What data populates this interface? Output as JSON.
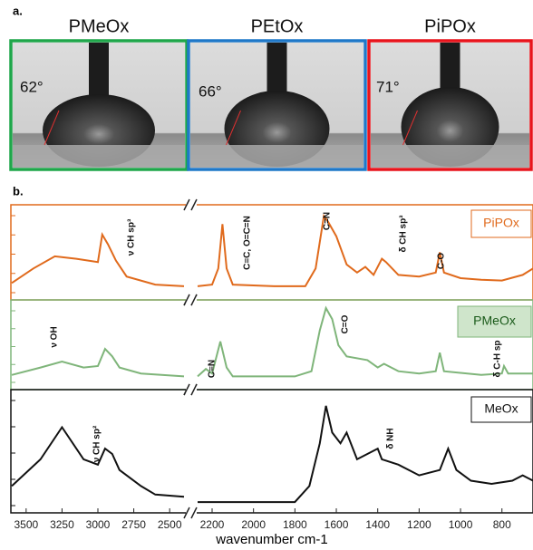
{
  "photos": {
    "label": "a.",
    "items": [
      {
        "title": "PMeOx",
        "angle": "62°",
        "color": "#1fa64a"
      },
      {
        "title": "PEtOx",
        "angle": "66°",
        "color": "#1f78c8"
      },
      {
        "title": "PiPOx",
        "angle": "71°",
        "color": "#e8141c"
      }
    ]
  },
  "chart_data": {
    "type": "line",
    "label": "b.",
    "xlabel": "wavenumber cm-1",
    "segments": [
      {
        "xlim": [
          3600,
          2400
        ]
      },
      {
        "xlim": [
          2270,
          650
        ]
      }
    ],
    "xticks": [
      3500,
      3250,
      3000,
      2750,
      2500,
      2200,
      2000,
      1800,
      1600,
      1400,
      1200,
      1000,
      800
    ],
    "series": [
      {
        "name": "PiPOx",
        "color": "#e06a1c",
        "x": [
          3600,
          3450,
          3300,
          3150,
          3000,
          2970,
          2930,
          2875,
          2800,
          2600,
          2400,
          2330,
          2270,
          2200,
          2170,
          2150,
          2130,
          2100,
          1900,
          1750,
          1700,
          1660,
          1640,
          1600,
          1550,
          1500,
          1460,
          1420,
          1380,
          1360,
          1300,
          1200,
          1120,
          1100,
          1080,
          1000,
          900,
          800,
          700,
          650
        ],
        "values": [
          12,
          30,
          45,
          42,
          38,
          72,
          60,
          40,
          20,
          10,
          8,
          null,
          8,
          10,
          30,
          85,
          30,
          10,
          8,
          8,
          30,
          95,
          88,
          70,
          35,
          25,
          32,
          22,
          42,
          38,
          22,
          20,
          25,
          50,
          25,
          18,
          16,
          15,
          22,
          30
        ]
      },
      {
        "name": "PMeOx",
        "color": "#7fb57a",
        "x": [
          3600,
          3400,
          3250,
          3100,
          3000,
          2950,
          2900,
          2850,
          2700,
          2400,
          2330,
          2270,
          2230,
          2200,
          2160,
          2130,
          2100,
          1800,
          1720,
          1680,
          1650,
          1620,
          1590,
          1550,
          1450,
          1400,
          1370,
          1300,
          1200,
          1120,
          1100,
          1080,
          900,
          800,
          790,
          770,
          650
        ],
        "values": [
          10,
          20,
          28,
          20,
          22,
          45,
          35,
          20,
          12,
          8,
          null,
          8,
          18,
          12,
          55,
          20,
          8,
          8,
          15,
          70,
          100,
          85,
          50,
          35,
          30,
          20,
          25,
          15,
          12,
          15,
          40,
          15,
          10,
          12,
          22,
          12,
          12
        ]
      },
      {
        "name": "MeOx",
        "color": "#111111",
        "x": [
          3600,
          3400,
          3250,
          3100,
          3000,
          2950,
          2900,
          2850,
          2700,
          2600,
          2400,
          2330,
          2270,
          1800,
          1730,
          1680,
          1650,
          1620,
          1580,
          1550,
          1500,
          1450,
          1400,
          1380,
          1300,
          1200,
          1100,
          1060,
          1020,
          950,
          850,
          750,
          700,
          650
        ],
        "values": [
          20,
          45,
          75,
          45,
          40,
          55,
          50,
          35,
          20,
          12,
          10,
          null,
          5,
          5,
          20,
          60,
          95,
          70,
          60,
          70,
          45,
          50,
          55,
          45,
          40,
          30,
          35,
          55,
          35,
          25,
          22,
          25,
          30,
          25
        ]
      }
    ],
    "annotations": [
      {
        "text": "ν CH sp³"
      },
      {
        "text": "C≡C, O=C=N"
      },
      {
        "text": "C=N"
      },
      {
        "text": "δ CH sp³"
      },
      {
        "text": "C-O"
      },
      {
        "text": "ν OH"
      },
      {
        "text": "C≡N"
      },
      {
        "text": "C=O"
      },
      {
        "text": "δ C-H sp"
      },
      {
        "text": "ν CH sp²"
      },
      {
        "text": "δ NH"
      }
    ]
  }
}
